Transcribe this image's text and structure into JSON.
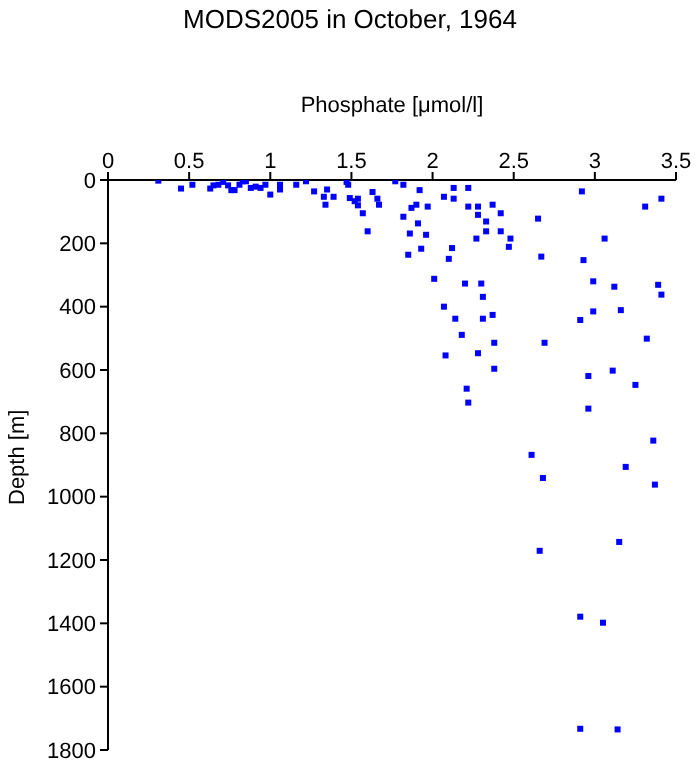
{
  "chart_data": {
    "type": "scatter",
    "title": "MODS2005 in October, 1964",
    "xlabel": "Phosphate [μmol/l]",
    "ylabel": "Depth [m]",
    "xlim": [
      0,
      3.5
    ],
    "xticks": [
      0,
      0.5,
      1,
      1.5,
      2,
      2.5,
      3,
      3.5
    ],
    "ylim": [
      1800,
      0
    ],
    "yticks": [
      0,
      200,
      400,
      600,
      800,
      1000,
      1200,
      1400,
      1600,
      1800
    ],
    "grid": false,
    "legend": false,
    "marker": "square",
    "series": [
      {
        "color": "#0000ff",
        "x": [
          0.31,
          0.45,
          0.52,
          0.63,
          0.65,
          0.68,
          0.71,
          0.74,
          0.76,
          0.78,
          0.81,
          0.83,
          0.85,
          0.88,
          0.91,
          0.94,
          0.97,
          1.0,
          1.06,
          1.06,
          1.16,
          1.22,
          1.27,
          1.33,
          1.34,
          1.35,
          1.39,
          1.47,
          1.48,
          1.49,
          1.52,
          1.54,
          1.54,
          1.57,
          1.6,
          1.63,
          1.66,
          1.67,
          1.77,
          1.82,
          1.82,
          1.87,
          1.86,
          1.85,
          1.9,
          1.91,
          1.92,
          1.93,
          1.97,
          1.96,
          2.01,
          2.07,
          2.13,
          2.13,
          2.07,
          2.1,
          2.12,
          2.14,
          2.18,
          2.2,
          2.22,
          2.22,
          2.28,
          2.3,
          2.28,
          2.33,
          2.33,
          2.31,
          2.27,
          2.31,
          2.37,
          2.37,
          2.42,
          2.42,
          2.47,
          2.48,
          2.65,
          2.67,
          2.92,
          2.93,
          2.99,
          2.99,
          3.06,
          3.12,
          3.16,
          3.31,
          3.32,
          3.39,
          3.41,
          3.41,
          2.91,
          2.08,
          2.28,
          2.38,
          2.69,
          2.38,
          2.96,
          3.11,
          3.25,
          2.21,
          2.22,
          2.96,
          3.36,
          2.61,
          3.19,
          2.68,
          3.37,
          2.66,
          3.15,
          2.91,
          3.05,
          2.91,
          3.14
        ],
        "values": [
          2,
          27,
          15,
          27,
          17,
          15,
          6,
          17,
          32,
          32,
          15,
          4,
          4,
          25,
          21,
          25,
          15,
          46,
          15,
          30,
          15,
          4,
          36,
          53,
          78,
          30,
          53,
          6,
          15,
          57,
          67,
          59,
          80,
          105,
          162,
          38,
          59,
          78,
          4,
          15,
          116,
          88,
          169,
          236,
          78,
          137,
          32,
          217,
          84,
          173,
          312,
          53,
          25,
          59,
          400,
          249,
          215,
          438,
          489,
          327,
          25,
          84,
          84,
          327,
          110,
          131,
          162,
          369,
          185,
          438,
          78,
          426,
          105,
          162,
          211,
          185,
          122,
          242,
          36,
          253,
          320,
          415,
          185,
          337,
          411,
          84,
          501,
          331,
          362,
          59,
          442,
          554,
          547,
          514,
          514,
          596,
          619,
          602,
          647,
          659,
          703,
          722,
          823,
          868,
          906,
          941,
          962,
          1171,
          1143,
          1379,
          1398,
          1733,
          1735
        ]
      }
    ]
  }
}
